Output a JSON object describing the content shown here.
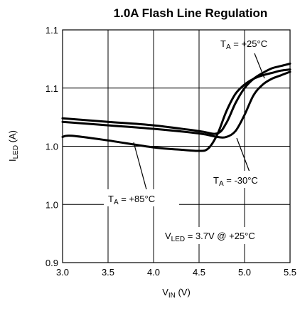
{
  "chart_data": {
    "type": "line",
    "title": "1.0A Flash Line Regulation",
    "xlabel": {
      "main": "V",
      "sub": "IN",
      "unit": " (V)"
    },
    "ylabel": {
      "main": "I",
      "sub": "LED",
      "unit": " (A)"
    },
    "xlim": [
      3.0,
      5.5
    ],
    "ylim": [
      0.9,
      1.1
    ],
    "x_ticks": [
      3.0,
      3.5,
      4.0,
      4.5,
      5.0,
      5.5
    ],
    "x_tick_labels": [
      "3.0",
      "3.5",
      "4.0",
      "4.5",
      "5.0",
      "5.5"
    ],
    "y_ticks": [
      0.9,
      0.95,
      1.0,
      1.05,
      1.1
    ],
    "y_tick_labels": [
      "0.9",
      "1.0",
      "1.0",
      "1.1",
      "1.1"
    ],
    "grid": true,
    "series": [
      {
        "name": "TA = +25°C",
        "x": [
          3.0,
          3.5,
          4.0,
          4.5,
          4.7,
          4.8,
          4.9,
          5.0,
          5.1,
          5.2,
          5.3,
          5.4,
          5.5
        ],
        "y": [
          1.024,
          1.021,
          1.018,
          1.013,
          1.011,
          1.02,
          1.037,
          1.05,
          1.058,
          1.063,
          1.067,
          1.069,
          1.071
        ]
      },
      {
        "name": "TA = -30°C",
        "x": [
          3.0,
          3.5,
          4.0,
          4.5,
          4.7,
          4.8,
          4.9,
          5.0,
          5.1,
          5.2,
          5.3,
          5.4,
          5.5
        ],
        "y": [
          1.021,
          1.018,
          1.015,
          1.011,
          1.008,
          1.008,
          1.013,
          1.027,
          1.044,
          1.053,
          1.058,
          1.061,
          1.064
        ]
      },
      {
        "name": "TA = +85°C",
        "x": [
          3.0,
          3.1,
          3.5,
          4.0,
          4.3,
          4.5,
          4.6,
          4.7,
          4.8,
          4.9,
          5.0,
          5.1,
          5.2,
          5.3,
          5.4,
          5.5
        ],
        "y": [
          1.008,
          1.009,
          1.005,
          0.999,
          0.997,
          0.996,
          0.998,
          1.01,
          1.03,
          1.045,
          1.053,
          1.058,
          1.061,
          1.063,
          1.065,
          1.066
        ]
      }
    ],
    "annotations": [
      {
        "main": "T",
        "sub": "A",
        "rest": " = +25°C",
        "at": [
          5.23,
          1.063
        ]
      },
      {
        "main": "T",
        "sub": "A",
        "rest": " = -30°C",
        "at": [
          4.85,
          1.007
        ]
      },
      {
        "main": "T",
        "sub": "A",
        "rest": " = +85°C",
        "at": [
          3.75,
          1.0
        ]
      },
      {
        "main": "V",
        "sub": "LED",
        "rest": " = 3.7V @ +25°C",
        "at": null
      }
    ]
  }
}
